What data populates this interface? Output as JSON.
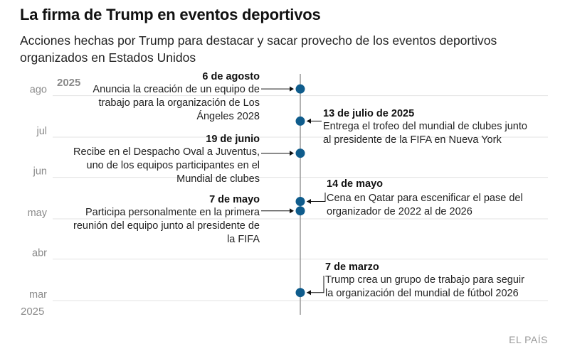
{
  "title": "La firma de Trump en eventos deportivos",
  "subtitle": "Acciones hechas por Trump para destacar y sacar provecho de los eventos deportivos organizados en Estados Unidos",
  "source": "EL PAÍS",
  "chart_data": {
    "type": "timeline",
    "axis": {
      "year_top": "2025",
      "year_bottom": "2025",
      "ticks": [
        "mar",
        "abr",
        "may",
        "jun",
        "jul",
        "ago"
      ]
    },
    "colors": {
      "dot": "#0f5c8c",
      "axis": "#999999",
      "grid": "#e3e3e3"
    },
    "events": [
      {
        "date_value": "2025-08-06",
        "date": "6 de agosto",
        "side": "left",
        "lines": [
          "Anuncia la creación de un equipo de",
          "trabajo para la organización de Los",
          "Ángeles 2028"
        ]
      },
      {
        "date_value": "2025-07-13",
        "date": "13 de julio de 2025",
        "side": "right",
        "lines": [
          "Entrega el trofeo del mundial de clubes junto",
          "al presidente de la FIFA en Nueva York"
        ]
      },
      {
        "date_value": "2025-06-19",
        "date": "19 de junio",
        "side": "left",
        "lines": [
          "Recibe en el Despacho Oval a Juventus,",
          "uno de los equipos participantes en el",
          "Mundial de clubes"
        ]
      },
      {
        "date_value": "2025-05-14",
        "date": "14 de mayo",
        "side": "right",
        "lines": [
          "Cena en Qatar para escenificar el pase del",
          "organizador de 2022 al de 2026"
        ]
      },
      {
        "date_value": "2025-05-07",
        "date": "7 de mayo",
        "side": "left",
        "lines": [
          "Participa personalmente en la primera",
          "reunión del equipo junto al presidente de",
          "la FIFA"
        ]
      },
      {
        "date_value": "2025-03-07",
        "date": "7 de marzo",
        "side": "right",
        "lines": [
          "Trump crea un grupo de trabajo para seguir",
          "la organización del mundial de fútbol 2026"
        ]
      }
    ]
  }
}
